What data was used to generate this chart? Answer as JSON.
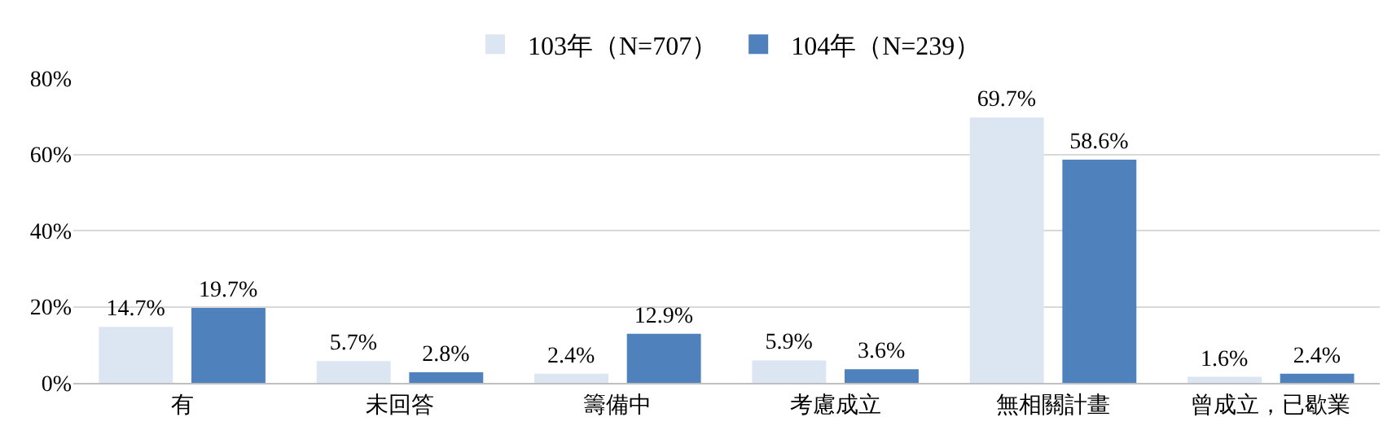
{
  "chart_data": {
    "type": "bar",
    "categories": [
      "有",
      "未回答",
      "籌備中",
      "考慮成立",
      "無相關計畫",
      "曾成立，已歇業"
    ],
    "series": [
      {
        "name": "103年（N=707）",
        "color": "#dce6f2",
        "values": [
          14.7,
          5.7,
          2.4,
          5.9,
          69.7,
          1.6
        ],
        "value_labels": [
          "14.7%",
          "5.7%",
          "2.4%",
          "5.9%",
          "69.7%",
          "1.6%"
        ]
      },
      {
        "name": "104年（N=239）",
        "color": "#4f81bd",
        "values": [
          19.7,
          2.8,
          12.9,
          3.6,
          58.6,
          2.4
        ],
        "value_labels": [
          "19.7%",
          "2.8%",
          "12.9%",
          "3.6%",
          "58.6%",
          "2.4%"
        ]
      }
    ],
    "ylim": [
      0,
      80
    ],
    "yticks": [
      {
        "value": 0,
        "label": "0%"
      },
      {
        "value": 20,
        "label": "20%"
      },
      {
        "value": 40,
        "label": "40%"
      },
      {
        "value": 60,
        "label": "60%"
      },
      {
        "value": 80,
        "label": "80%"
      }
    ],
    "grid": "y",
    "legend": "top"
  }
}
